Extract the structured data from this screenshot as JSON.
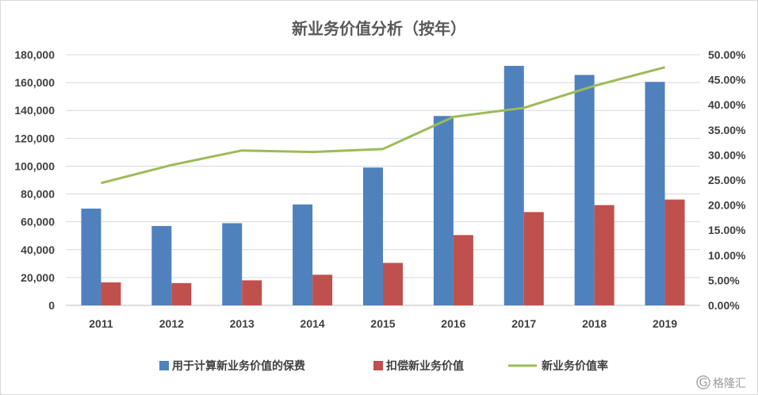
{
  "chart_data": {
    "type": "bar",
    "title": "新业务价值分析（按年）",
    "categories": [
      "2011",
      "2012",
      "2013",
      "2014",
      "2015",
      "2016",
      "2017",
      "2018",
      "2019"
    ],
    "series": [
      {
        "name": "用于计算新业务价值的保费",
        "kind": "bar",
        "axis": "left",
        "color": "#4f81bd",
        "values": [
          69500,
          57000,
          59000,
          72500,
          99000,
          136000,
          172000,
          165500,
          160500
        ]
      },
      {
        "name": "扣偿新业务价值",
        "kind": "bar",
        "axis": "left",
        "color": "#c0504d",
        "values": [
          16500,
          16000,
          18000,
          22000,
          30500,
          50500,
          67000,
          72000,
          76000
        ]
      },
      {
        "name": "新业务价值率",
        "kind": "line",
        "axis": "right",
        "color": "#9bbb59",
        "values": [
          24.4,
          28.0,
          30.9,
          30.6,
          31.2,
          37.6,
          39.4,
          43.8,
          47.5
        ]
      }
    ],
    "y_left": {
      "min": 0,
      "max": 180000,
      "step": 20000,
      "ticks": [
        "0",
        "20,000",
        "40,000",
        "60,000",
        "80,000",
        "100,000",
        "120,000",
        "140,000",
        "160,000",
        "180,000"
      ]
    },
    "y_right": {
      "min": 0,
      "max": 50,
      "step": 5,
      "ticks": [
        "0.00%",
        "5.00%",
        "10.00%",
        "15.00%",
        "20.00%",
        "25.00%",
        "30.00%",
        "35.00%",
        "40.00%",
        "45.00%",
        "50.00%"
      ]
    },
    "xlabel": "",
    "ylabel": "",
    "grid": true,
    "legend": "bottom"
  },
  "watermark": {
    "symbol": "G",
    "text": "格隆汇"
  }
}
